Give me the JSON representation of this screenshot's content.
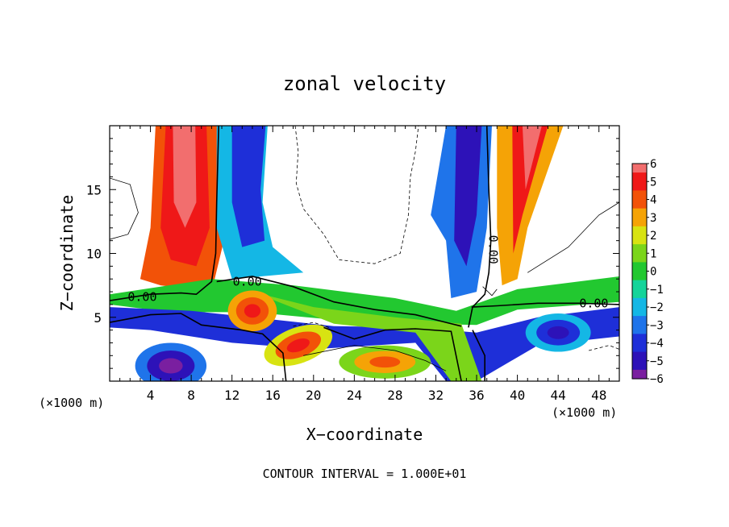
{
  "chart_data": {
    "type": "heatmap",
    "title": "zonal velocity",
    "xlabel": "X−coordinate",
    "ylabel": "Z−coordinate",
    "x_unit_left": "(×1000 m)",
    "x_unit_right": "(×1000 m)",
    "footer": "CONTOUR INTERVAL = 1.000E+01",
    "xlim": [
      0,
      50
    ],
    "ylim": [
      0,
      20
    ],
    "x_ticks": [
      4,
      8,
      12,
      16,
      20,
      24,
      28,
      32,
      36,
      40,
      44,
      48
    ],
    "y_ticks": [
      5,
      10,
      15
    ],
    "colorbar": {
      "min": -6,
      "max": 6,
      "labels": [
        6,
        5,
        4,
        3,
        2,
        1,
        0,
        -1,
        -2,
        -3,
        -4,
        -5,
        -6
      ],
      "label_text": [
        "6",
        "5",
        "4",
        "3",
        "2",
        "1",
        "0",
        "−1",
        "−2",
        "−3",
        "−4",
        "−5",
        "−6"
      ]
    },
    "contour_labels": [
      "0.00",
      "0.00",
      "0.00",
      "0.00"
    ],
    "colors": {
      "-6": "#7a1fa0",
      "-5": "#2d12b8",
      "-4": "#1e2fd8",
      "-3": "#1f74ea",
      "-2": "#14b7e5",
      "-1": "#14d49a",
      "0": "#22c830",
      "1": "#7bd51a",
      "2": "#d8e312",
      "3": "#f5a306",
      "4": "#f25208",
      "5": "#ef1818",
      "6": "#f26e6e"
    }
  }
}
